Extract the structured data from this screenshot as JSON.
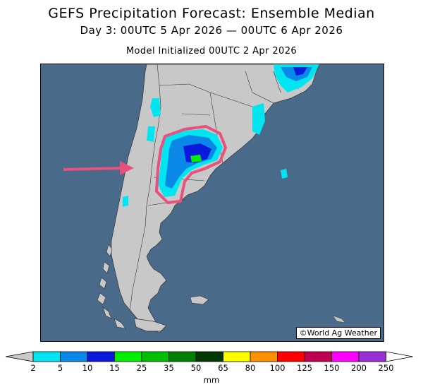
{
  "header": {
    "title": "GEFS Precipitation Forecast: Ensemble Median",
    "subtitle": "Day 3: 00UTC 5 Apr 2026 — 00UTC 6 Apr 2026",
    "init": "Model Initialized 00UTC 2 Apr 2026"
  },
  "map": {
    "credit": "©World Ag Weather",
    "ocean_color": "#4a6a8a",
    "land_color": "#c8c8c8",
    "highlight_color": "#e8507e"
  },
  "legend": {
    "units": "mm",
    "ticks": [
      "2",
      "5",
      "10",
      "15",
      "25",
      "35",
      "50",
      "65",
      "80",
      "100",
      "125",
      "150",
      "200",
      "250"
    ],
    "colors": [
      "#00e5f0",
      "#0a88e8",
      "#0a1adc",
      "#00f000",
      "#00c000",
      "#008000",
      "#003a00",
      "#ffff00",
      "#ff9000",
      "#ff0000",
      "#c00050",
      "#ff00ff",
      "#9b30d8"
    ]
  }
}
